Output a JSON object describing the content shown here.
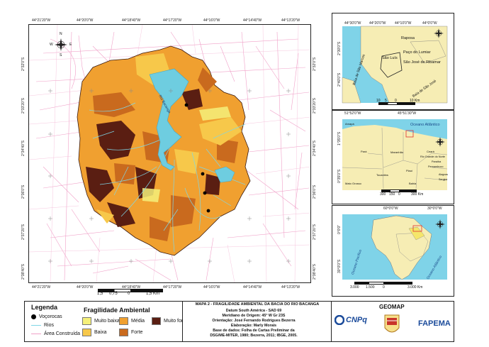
{
  "main_map": {
    "top_ticks": [
      "44°21'20\"W",
      "44°20'0\"W",
      "44°18'40\"W",
      "44°17'20\"W",
      "44°16'0\"W",
      "44°14'40\"W",
      "44°13'20\"W"
    ],
    "bottom_ticks": [
      "44°21'20\"W",
      "44°20'0\"W",
      "44°18'40\"W",
      "44°17'20\"W",
      "44°16'0\"W",
      "44°14'40\"W",
      "44°13'20\"W"
    ],
    "left_ticks": [
      "2°32'0\"S",
      "2°33'20\"S",
      "2°34'40\"S",
      "2°36'0\"S",
      "2°37'20\"S",
      "2°38'40\"S"
    ],
    "right_ticks": [
      "2°32'0\"S",
      "2°33'20\"S",
      "2°34'40\"S",
      "2°36'0\"S",
      "2°37'20\"S",
      "2°38'40\"S"
    ],
    "river_label": "Rio Bacanga",
    "compass": {
      "n": "N",
      "s": "S",
      "e": "E",
      "w": "W"
    },
    "scale_labels": [
      "1,5",
      "0,75",
      "0",
      "1,5 Km"
    ]
  },
  "inset_top": {
    "top_ticks": [
      "44°30'0\"W",
      "44°20'0\"W",
      "44°10'0\"W",
      "44°0'0\"W"
    ],
    "left_ticks": [
      "2°30'0\"S",
      "2°40'0\"S"
    ],
    "places": [
      "Raposa",
      "Paço do Lumiar",
      "São Luís",
      "São José de Ribamar"
    ],
    "bays": [
      "Baía de São Marcos",
      "Baía de São José"
    ],
    "scale_labels": [
      "10",
      "5",
      "0",
      "10 Km"
    ]
  },
  "inset_mid": {
    "top_ticks": [
      "51°52'0\"W",
      "45°51'30\"W"
    ],
    "left_ticks": [
      "1°35'0\"S",
      "0°35'0\"S"
    ],
    "ocean": "Oceano Atlântico",
    "states": [
      "Amapá",
      "Pará",
      "Maranhão",
      "Ceará",
      "Rio Grande do Norte",
      "Paraíba",
      "Pernambuco",
      "Piauí",
      "Tocantins",
      "Bahia",
      "Mato Grosso",
      "Alagoas",
      "Sergipe"
    ],
    "scale_labels": [
      "300",
      "150",
      "0",
      "300 Km"
    ]
  },
  "inset_bot": {
    "top_ticks": [
      "60°0'0\"W",
      "30°0'0\"W"
    ],
    "left_ticks": [
      "0°0'0\"",
      "30°0'0\"S"
    ],
    "oceans": [
      "Oceano Pacífico",
      "Oceano Atlântico"
    ],
    "scale_labels": [
      "3.000",
      "1.500",
      "0",
      "3.000 Km"
    ]
  },
  "legend": {
    "title": "Legenda",
    "items": [
      {
        "label": "Voçorocas",
        "kind": "dot"
      },
      {
        "label": "Rios",
        "kind": "line"
      },
      {
        "label": "Área Construída",
        "kind": "pinkline"
      }
    ],
    "fragilidade_title": "Fragilidade Ambiental",
    "classes": [
      {
        "label": "Muito baixa",
        "color": "#f5f07a"
      },
      {
        "label": "Baixa",
        "color": "#f7c84a"
      },
      {
        "label": "Média",
        "color": "#f0a030"
      },
      {
        "label": "Forte",
        "color": "#c96a1e"
      },
      {
        "label": "Muito forte",
        "color": "#5a1e12"
      }
    ]
  },
  "info": {
    "title": "MAPA 2 - FRAGILIDADE AMBIENTAL DA BACIA DO RIO BACANGA",
    "lines": [
      "Datum South América - SAD 69",
      "Meridiano de Origem: 45° W Gr 23S",
      "Orientação: José Fernando Rodrigues Bezerra",
      "Elaboração: Marly Morais",
      "Base de dados: Folha de Cartas Preliminar da",
      "DSG/ME-MITER, 1980; Bezerra, 2011; IBGE, 2005."
    ]
  },
  "logos": {
    "geomap": "GEOMAP",
    "cnpq": "CNPq",
    "fapema": "FAPEMA"
  }
}
